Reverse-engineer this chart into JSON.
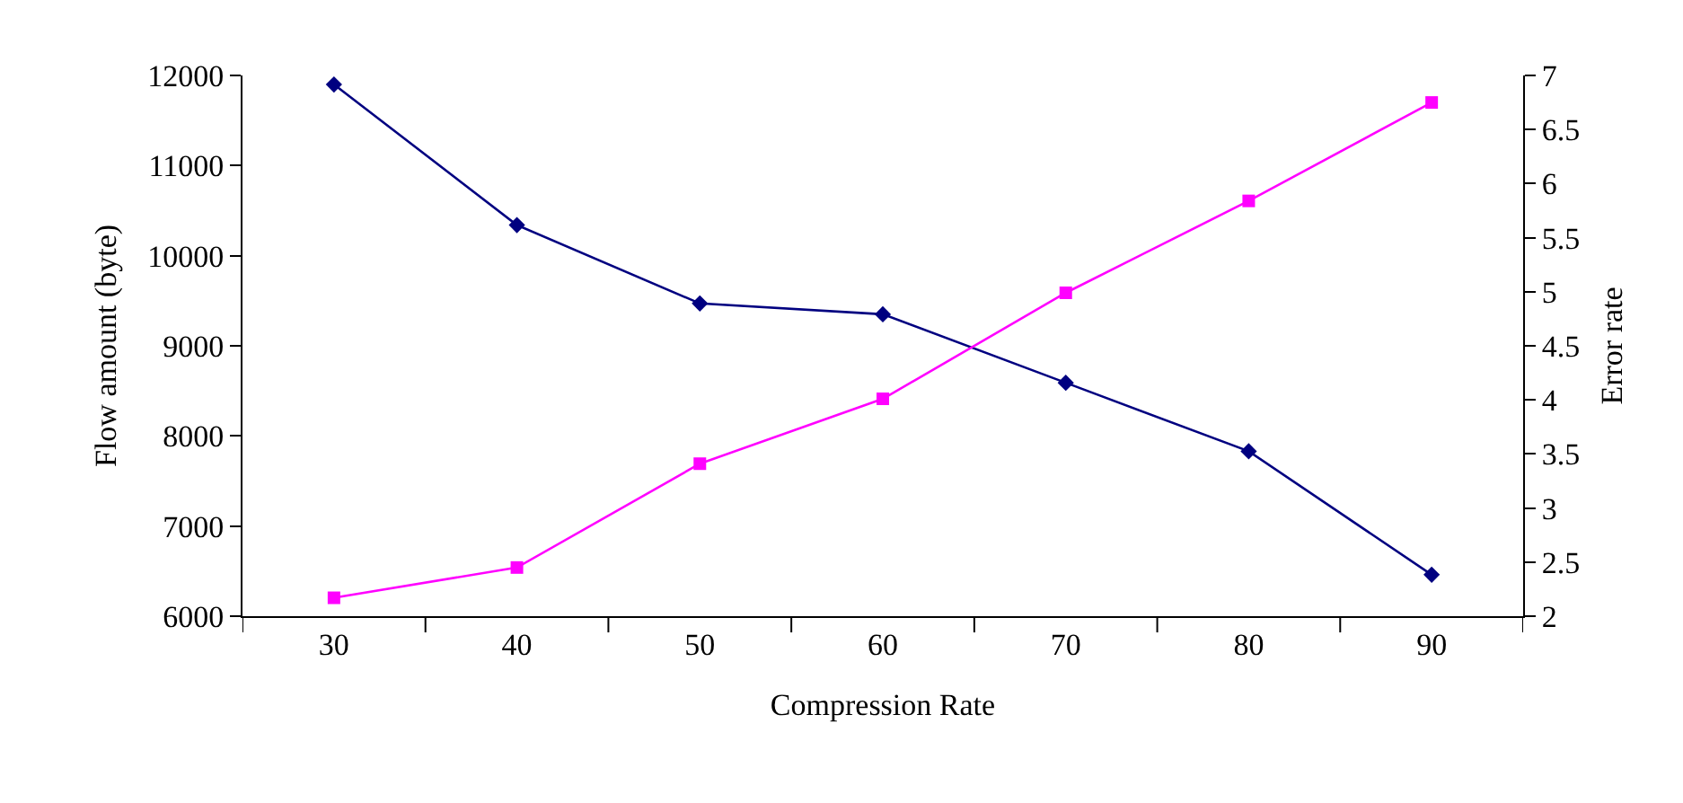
{
  "chart_data": {
    "type": "line",
    "xlabel": "Compression Rate",
    "ylabel": "Flow amount (byte)",
    "y2label": "Error rate",
    "categories": [
      "30",
      "40",
      "50",
      "60",
      "70",
      "80",
      "90"
    ],
    "series": [
      {
        "color": "#000080",
        "marker": "diamond",
        "values": [
          11900,
          10340,
          9470,
          9350,
          8590,
          7830,
          6460
        ]
      },
      {
        "color": "#ff00ff",
        "marker": "square",
        "axis": "y2",
        "values": [
          2.17,
          2.45,
          3.41,
          4.01,
          4.99,
          5.84,
          6.75
        ]
      }
    ],
    "ylim": [
      6000,
      12000
    ],
    "yticks": [
      6000,
      7000,
      8000,
      9000,
      10000,
      11000,
      12000
    ],
    "y2lim": [
      2,
      7
    ],
    "y2ticks": [
      2,
      2.5,
      3,
      3.5,
      4,
      4.5,
      5,
      5.5,
      6,
      6.5,
      7
    ],
    "line_style": "solid"
  }
}
